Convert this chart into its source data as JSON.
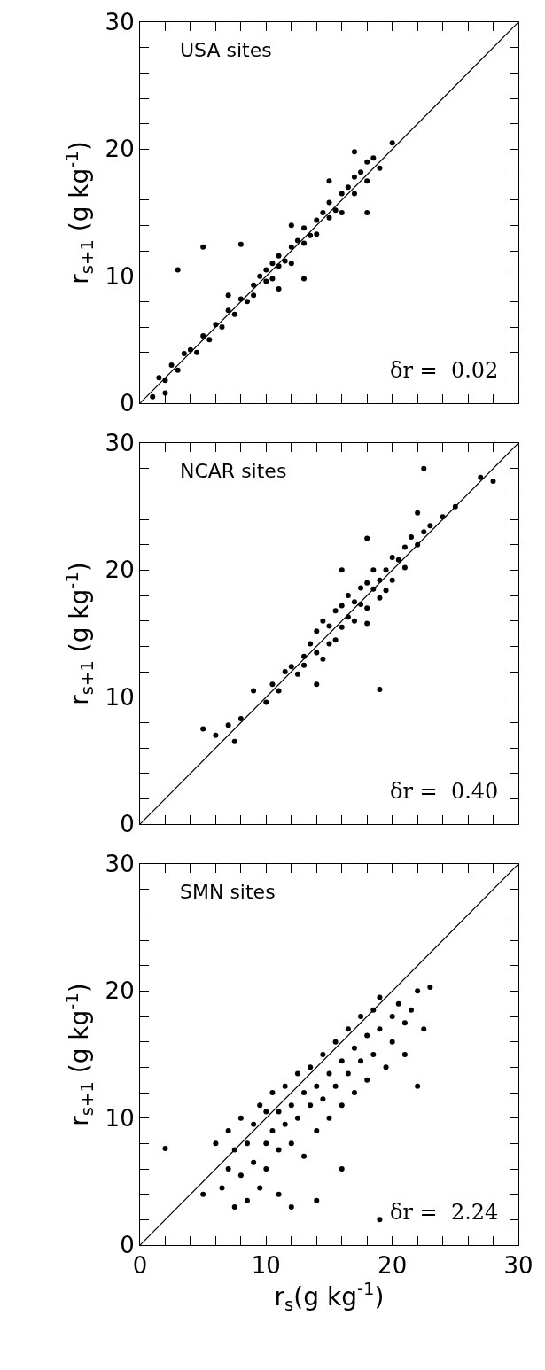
{
  "chart_data": [
    {
      "type": "scatter",
      "ylabel": "r$_{s+1}$ (g kg$^{-1}$)",
      "annotations": [
        "USA sites",
        "δr =  0.02"
      ],
      "xlim": [
        0,
        30
      ],
      "ylim": [
        0,
        30
      ],
      "xticks": [
        0,
        {
          "value": 2,
          "label": null
        },
        {
          "value": 4,
          "label": null
        },
        {
          "value": 6,
          "label": null
        },
        {
          "value": 8,
          "label": null
        },
        10,
        {
          "value": 12,
          "label": null
        },
        {
          "value": 14,
          "label": null
        },
        {
          "value": 16,
          "label": null
        },
        {
          "value": 18,
          "label": null
        },
        20,
        {
          "value": 22,
          "label": null
        },
        {
          "value": 24,
          "label": null
        },
        {
          "value": 26,
          "label": null
        },
        {
          "value": 28,
          "label": null
        },
        30
      ],
      "yticks": [
        0,
        {
          "value": 2,
          "label": null
        },
        {
          "value": 4,
          "label": null
        },
        {
          "value": 6,
          "label": null
        },
        {
          "value": 8,
          "label": null
        },
        10,
        {
          "value": 12,
          "label": null
        },
        {
          "value": 14,
          "label": null
        },
        {
          "value": 16,
          "label": null
        },
        {
          "value": 18,
          "label": null
        },
        20,
        {
          "value": 22,
          "label": null
        },
        {
          "value": 24,
          "label": null
        },
        {
          "value": 26,
          "label": null
        },
        {
          "value": 28,
          "label": null
        },
        30
      ],
      "tick_labels": "y",
      "grid": false,
      "legend": false,
      "series": [
        {
          "marker": "circle",
          "color": "#000000",
          "x": [
            1,
            1.5,
            2,
            2.5,
            3,
            3.5,
            4,
            4.5,
            5,
            5.5,
            6,
            6.5,
            7,
            7.5,
            8,
            8.5,
            9,
            9,
            9.5,
            10,
            10,
            10.5,
            10.5,
            11,
            11,
            11.5,
            12,
            12,
            12.5,
            13,
            13,
            13.5,
            14,
            14,
            14.5,
            15,
            15,
            15.5,
            16,
            16,
            16.5,
            17,
            17,
            17.5,
            18,
            18,
            18.5,
            17,
            19,
            13,
            8,
            3,
            5,
            20,
            11,
            7,
            2,
            18,
            15,
            12
          ],
          "values": [
            0.5,
            2,
            1.8,
            3,
            2.6,
            3.9,
            4.2,
            4,
            5.3,
            5,
            6.2,
            6,
            7.3,
            7,
            8.2,
            8,
            9.3,
            8.5,
            10,
            9.6,
            10.5,
            11,
            9.8,
            10.8,
            11.6,
            11.2,
            12.3,
            11,
            12.8,
            12.6,
            13.8,
            13.2,
            14.4,
            13.3,
            15,
            14.6,
            15.8,
            15.2,
            16.5,
            15,
            17,
            16.5,
            17.8,
            18.2,
            17.5,
            19,
            19.3,
            19.8,
            18.5,
            9.8,
            12.5,
            10.5,
            12.3,
            20.5,
            9,
            8.5,
            0.8,
            15,
            17.5,
            14
          ]
        },
        {
          "type": "line",
          "color": "#000000",
          "x": [
            0,
            30
          ],
          "values": [
            0,
            30
          ]
        }
      ]
    },
    {
      "type": "scatter",
      "ylabel": "r$_{s+1}$ (g kg$^{-1}$)",
      "annotations": [
        "NCAR sites",
        "δr =  0.40"
      ],
      "xlim": [
        0,
        30
      ],
      "ylim": [
        0,
        30
      ],
      "xticks": [
        0,
        {
          "value": 2,
          "label": null
        },
        {
          "value": 4,
          "label": null
        },
        {
          "value": 6,
          "label": null
        },
        {
          "value": 8,
          "label": null
        },
        10,
        {
          "value": 12,
          "label": null
        },
        {
          "value": 14,
          "label": null
        },
        {
          "value": 16,
          "label": null
        },
        {
          "value": 18,
          "label": null
        },
        20,
        {
          "value": 22,
          "label": null
        },
        {
          "value": 24,
          "label": null
        },
        {
          "value": 26,
          "label": null
        },
        {
          "value": 28,
          "label": null
        },
        30
      ],
      "yticks": [
        0,
        {
          "value": 2,
          "label": null
        },
        {
          "value": 4,
          "label": null
        },
        {
          "value": 6,
          "label": null
        },
        {
          "value": 8,
          "label": null
        },
        10,
        {
          "value": 12,
          "label": null
        },
        {
          "value": 14,
          "label": null
        },
        {
          "value": 16,
          "label": null
        },
        {
          "value": 18,
          "label": null
        },
        20,
        {
          "value": 22,
          "label": null
        },
        {
          "value": 24,
          "label": null
        },
        {
          "value": 26,
          "label": null
        },
        {
          "value": 28,
          "label": null
        },
        30
      ],
      "tick_labels": "y",
      "grid": false,
      "legend": false,
      "series": [
        {
          "marker": "circle",
          "color": "#000000",
          "x": [
            5,
            6,
            7,
            7.5,
            8,
            9,
            10,
            10.5,
            11,
            11.5,
            12,
            12.5,
            13,
            13,
            13.5,
            14,
            14,
            14.5,
            14.5,
            15,
            15,
            15.5,
            15.5,
            16,
            16,
            16.5,
            16.5,
            17,
            17,
            17.5,
            17.5,
            18,
            18,
            18,
            18.5,
            18.5,
            19,
            19,
            19.5,
            19.5,
            20,
            20,
            20.5,
            21,
            21,
            21.5,
            22,
            22,
            22.5,
            23,
            24,
            25,
            27,
            28,
            22.5,
            19,
            18,
            16,
            14
          ],
          "values": [
            7.5,
            7,
            7.8,
            6.5,
            8.3,
            10.5,
            9.6,
            11,
            10.5,
            12,
            12.4,
            11.8,
            13.2,
            12.5,
            14.2,
            13.5,
            15.2,
            16,
            13,
            15.6,
            14.2,
            16.8,
            14.5,
            17.2,
            15.5,
            18,
            16.3,
            17.5,
            16,
            18.6,
            17.3,
            19,
            17,
            15.8,
            18.5,
            20,
            19.2,
            17.8,
            20,
            18.4,
            21,
            19.2,
            20.8,
            21.8,
            20.2,
            22.6,
            22,
            24.5,
            23,
            23.5,
            24.2,
            25,
            27.3,
            27,
            28,
            10.6,
            22.5,
            20,
            11
          ]
        },
        {
          "type": "line",
          "color": "#000000",
          "x": [
            0,
            30
          ],
          "values": [
            0,
            30
          ]
        }
      ]
    },
    {
      "type": "scatter",
      "xlabel": "r$_{s}$(g kg$^{-1}$)",
      "ylabel": "r$_{s+1}$ (g kg$^{-1}$)",
      "annotations": [
        "SMN sites",
        "δr =  2.24"
      ],
      "xlim": [
        0,
        30
      ],
      "ylim": [
        0,
        30
      ],
      "xticks": [
        0,
        {
          "value": 2,
          "label": null
        },
        {
          "value": 4,
          "label": null
        },
        {
          "value": 6,
          "label": null
        },
        {
          "value": 8,
          "label": null
        },
        10,
        {
          "value": 12,
          "label": null
        },
        {
          "value": 14,
          "label": null
        },
        {
          "value": 16,
          "label": null
        },
        {
          "value": 18,
          "label": null
        },
        20,
        {
          "value": 22,
          "label": null
        },
        {
          "value": 24,
          "label": null
        },
        {
          "value": 26,
          "label": null
        },
        {
          "value": 28,
          "label": null
        },
        30
      ],
      "yticks": [
        0,
        {
          "value": 2,
          "label": null
        },
        {
          "value": 4,
          "label": null
        },
        {
          "value": 6,
          "label": null
        },
        {
          "value": 8,
          "label": null
        },
        10,
        {
          "value": 12,
          "label": null
        },
        {
          "value": 14,
          "label": null
        },
        {
          "value": 16,
          "label": null
        },
        {
          "value": 18,
          "label": null
        },
        20,
        {
          "value": 22,
          "label": null
        },
        {
          "value": 24,
          "label": null
        },
        {
          "value": 26,
          "label": null
        },
        {
          "value": 28,
          "label": null
        },
        30
      ],
      "grid": false,
      "legend": false,
      "series": [
        {
          "marker": "circle",
          "color": "#000000",
          "x": [
            2,
            5,
            6,
            6.5,
            7,
            7,
            7.5,
            7.5,
            8,
            8,
            8.5,
            8.5,
            9,
            9,
            9.5,
            9.5,
            10,
            10,
            10,
            10.5,
            10.5,
            11,
            11,
            11,
            11.5,
            11.5,
            12,
            12,
            12.5,
            12.5,
            13,
            13,
            13.5,
            13.5,
            14,
            14,
            14.5,
            14.5,
            15,
            15,
            15.5,
            15.5,
            16,
            16,
            16.5,
            16.5,
            17,
            17,
            17.5,
            17.5,
            18,
            18,
            18.5,
            18.5,
            19,
            19,
            19.5,
            20,
            20,
            20.5,
            21,
            21,
            21.5,
            22,
            22.5,
            23,
            22,
            19,
            12,
            14,
            16
          ],
          "values": [
            7.6,
            4,
            8,
            4.5,
            6,
            9,
            3,
            7.5,
            10,
            5.5,
            8,
            3.5,
            9.5,
            6.5,
            11,
            4.5,
            10.5,
            8,
            6,
            12,
            9,
            10.5,
            7.5,
            4,
            12.5,
            9.5,
            11,
            8,
            13.5,
            10,
            12,
            7,
            14,
            11,
            12.5,
            9,
            15,
            11.5,
            13.5,
            10,
            16,
            12.5,
            14.5,
            11,
            17,
            13.5,
            15.5,
            12,
            18,
            14.5,
            16.5,
            13,
            18.5,
            15,
            17,
            19.5,
            14,
            18,
            16,
            19,
            17.5,
            15,
            18.5,
            20,
            17,
            20.3,
            12.5,
            2,
            3,
            3.5,
            6
          ]
        },
        {
          "type": "line",
          "color": "#000000",
          "x": [
            0,
            30
          ],
          "values": [
            0,
            30
          ]
        }
      ]
    }
  ]
}
